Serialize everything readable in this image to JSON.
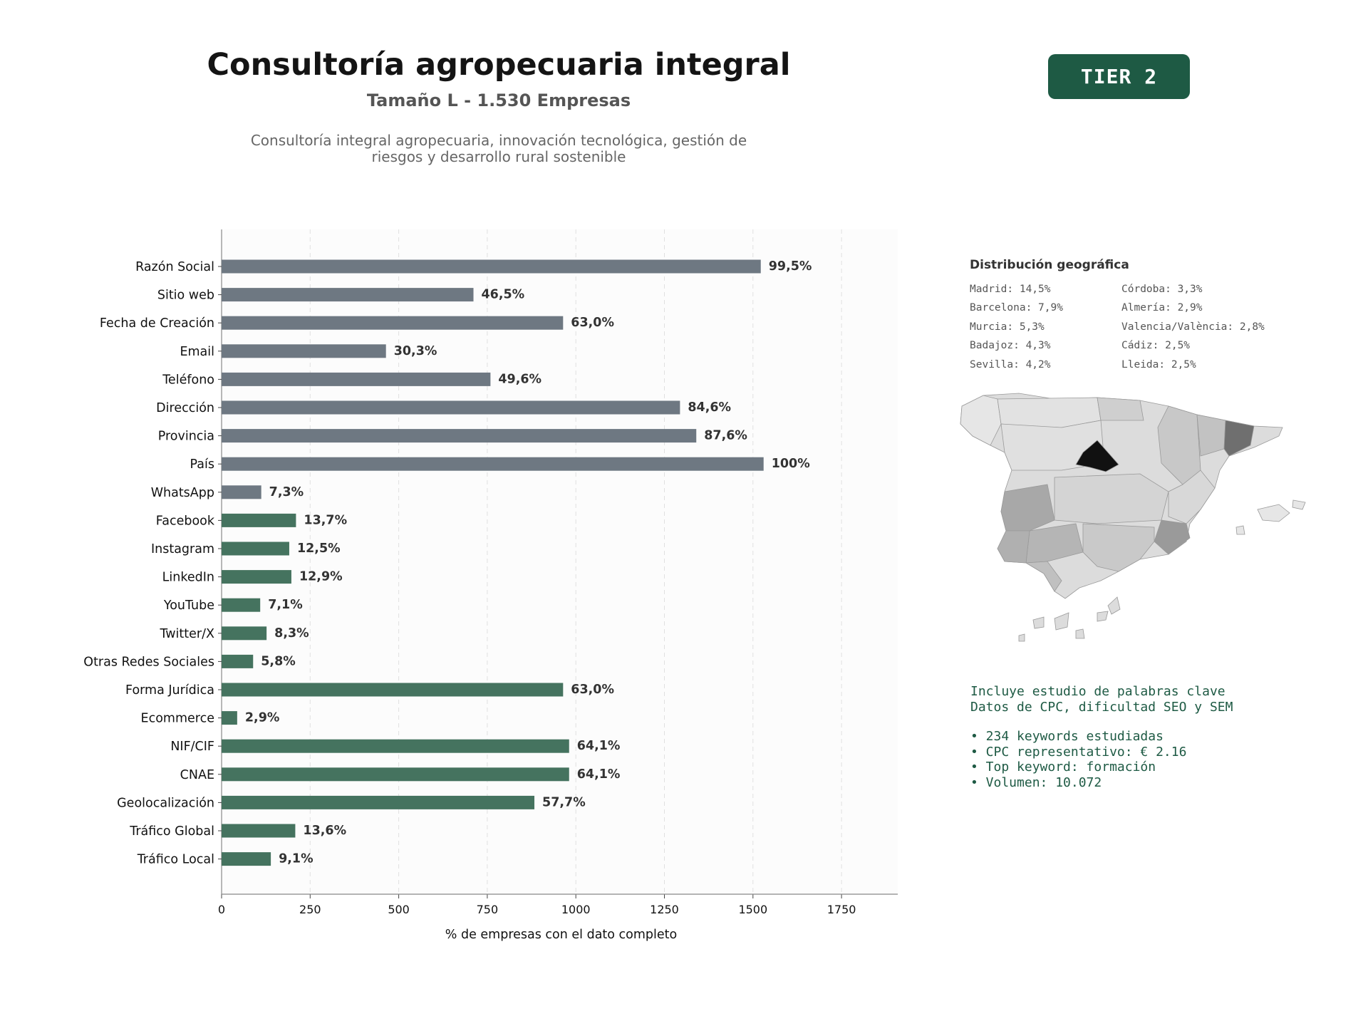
{
  "header": {
    "title": "Consultoría agropecuaria integral",
    "subtitle": "Tamaño L - 1.530 Empresas",
    "description_line1": "Consultoría integral agropecuaria, innovación tecnológica, gestión de",
    "description_line2": "riesgos y desarrollo rural sostenible",
    "tier_badge": "TIER 2"
  },
  "colors": {
    "grey_bar": "#6e7882",
    "green_bar": "#45735f",
    "badge": "#1e5a44",
    "keyword_text": "#1e5a44",
    "madrid": "#111111",
    "barcelona": "#6f6f6f"
  },
  "chart_data": {
    "type": "bar",
    "orientation": "horizontal",
    "xlabel": "% de empresas con el dato completo",
    "xlim": [
      0,
      1910
    ],
    "xticks": [
      0,
      250,
      500,
      750,
      1000,
      1250,
      1500,
      1750
    ],
    "grid": "vertical dashed",
    "categories": [
      "Razón Social",
      "Sitio web",
      "Fecha de Creación",
      "Email",
      "Teléfono",
      "Dirección",
      "Provincia",
      "País",
      "WhatsApp",
      "Facebook",
      "Instagram",
      "LinkedIn",
      "YouTube",
      "Twitter/X",
      "Otras Redes Sociales",
      "Forma Jurídica",
      "Ecommerce",
      "NIF/CIF",
      "CNAE",
      "Geolocalización",
      "Tráfico Global",
      "Tráfico Local"
    ],
    "values": [
      1522,
      711,
      964,
      464,
      759,
      1294,
      1340,
      1530,
      112,
      210,
      191,
      197,
      109,
      127,
      89,
      964,
      44,
      981,
      981,
      883,
      208,
      139
    ],
    "labels": [
      "99,5%",
      "46,5%",
      "63,0%",
      "30,3%",
      "49,6%",
      "84,6%",
      "87,6%",
      "100%",
      "7,3%",
      "13,7%",
      "12,5%",
      "12,9%",
      "7,1%",
      "8,3%",
      "5,8%",
      "63,0%",
      "2,9%",
      "64,1%",
      "64,1%",
      "57,7%",
      "13,6%",
      "9,1%"
    ],
    "groups": [
      "grey",
      "grey",
      "grey",
      "grey",
      "grey",
      "grey",
      "grey",
      "grey",
      "grey",
      "green",
      "green",
      "green",
      "green",
      "green",
      "green",
      "green",
      "green",
      "green",
      "green",
      "green",
      "green",
      "green"
    ]
  },
  "geo": {
    "title": "Distribución geográfica",
    "col1": [
      "Madrid: 14,5%",
      "Barcelona: 7,9%",
      "Murcia: 5,3%",
      "Badajoz: 4,3%",
      "Sevilla: 4,2%"
    ],
    "col2": [
      "Córdoba: 3,3%",
      "Almería: 2,9%",
      "Valencia/València: 2,8%",
      "Cádiz: 2,5%",
      "Lleida: 2,5%"
    ]
  },
  "keywords": {
    "line1": "Incluye estudio de palabras clave",
    "line2": "Datos de CPC, dificultad SEO y SEM",
    "bullets": [
      "• 234 keywords estudiadas",
      "• CPC representativo: € 2.16",
      "• Top keyword: formación",
      "• Volumen: 10.072"
    ]
  }
}
